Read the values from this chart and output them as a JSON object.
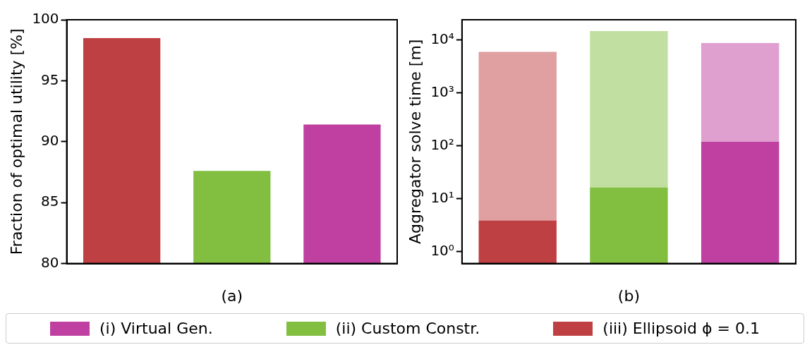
{
  "chart_data": [
    {
      "type": "bar",
      "xlabel": "(a)",
      "ylabel": "Fraction of optimal utility [%]",
      "categories": [
        null,
        null,
        null
      ],
      "series": [
        {
          "name": "(i) Virtual Gen.",
          "color": "#bf40a0",
          "values": [
            null,
            null,
            91.4
          ]
        },
        {
          "name": "(ii) Custom Constr.",
          "color": "#82bf40",
          "values": [
            null,
            87.6,
            null
          ]
        },
        {
          "name": "(iii) Ellipsoid ϕ = 0.1",
          "color": "#bf4042",
          "values": [
            98.5,
            null,
            null
          ]
        }
      ],
      "ylim": [
        80,
        100
      ],
      "yticks": [
        80,
        85,
        90,
        95,
        100
      ],
      "grid": false,
      "legend": "bottom"
    },
    {
      "type": "bar",
      "xlabel": "(b)",
      "ylabel": "Aggregator solve time [m]",
      "categories": [
        null,
        null,
        null
      ],
      "log": "y",
      "stacked": true,
      "series": [
        {
          "colors": [
            "#bf4042",
            "#82bf40",
            "#bf40a0"
          ],
          "values": [
            3.9,
            16.5,
            120
          ]
        },
        {
          "colors": [
            "#e09fa0",
            "#c1dfa0",
            "#df9fcf"
          ],
          "values": [
            5996.1,
            14883.5,
            8680
          ]
        }
      ],
      "ylim": [
        0.61,
        24300
      ],
      "yticks": [
        {
          "value": 1,
          "label": "10⁰"
        },
        {
          "value": 10,
          "label": "10¹"
        },
        {
          "value": 100,
          "label": "10²"
        },
        {
          "value": 1000,
          "label": "10³"
        },
        {
          "value": 10000,
          "label": "10⁴"
        }
      ],
      "grid": false
    }
  ]
}
